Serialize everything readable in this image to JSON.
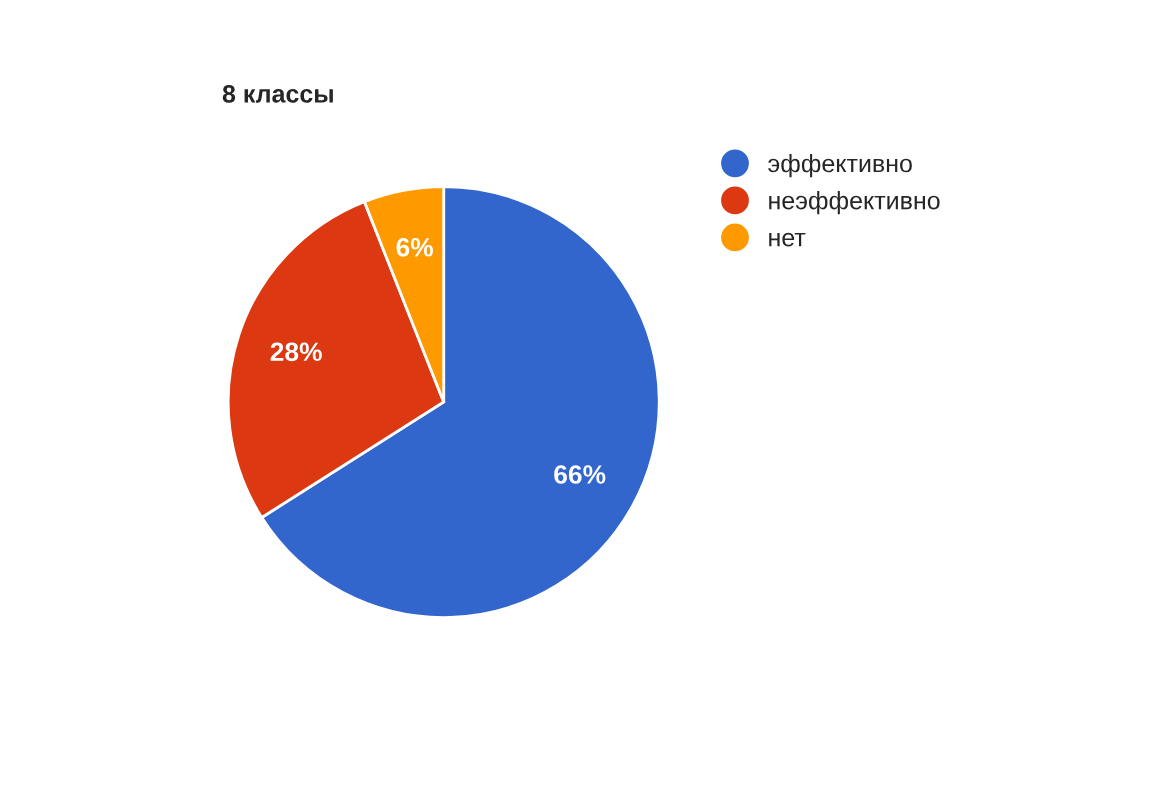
{
  "chart_data": {
    "type": "pie",
    "title": "8 классы",
    "categories": [
      "эффективно",
      "неэффективно",
      "нет"
    ],
    "values": [
      66,
      28,
      6
    ],
    "value_labels": [
      "66%",
      "28%",
      "6%"
    ],
    "colors": [
      "#3366cc",
      "#dc3912",
      "#ff9900"
    ],
    "legend": "right"
  }
}
